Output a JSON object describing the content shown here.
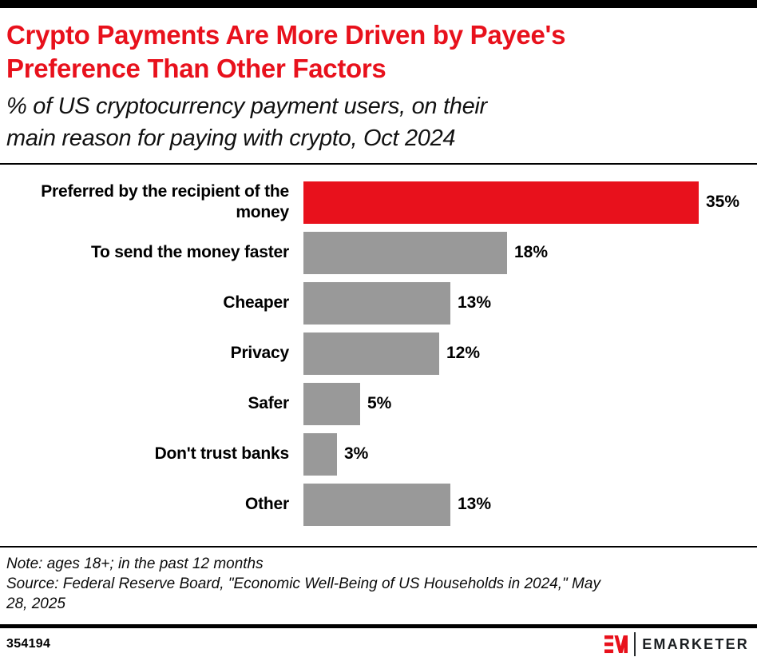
{
  "header": {
    "title": "Crypto Payments Are More Driven by Payee's Preference Than Other Factors",
    "title_lines": [
      "Crypto Payments Are More Driven by Payee's",
      "Preference Than Other Factors"
    ],
    "subtitle": "% of US cryptocurrency payment users, on their main reason for paying with crypto, Oct 2024",
    "subtitle_lines": [
      "% of US cryptocurrency payment users, on their",
      "main reason for paying with crypto, Oct 2024"
    ]
  },
  "chart_data": {
    "type": "bar",
    "orientation": "horizontal",
    "title": "Crypto Payments Are More Driven by Payee's Preference Than Other Factors",
    "subtitle": "% of US cryptocurrency payment users, on their main reason for paying with crypto, Oct 2024",
    "categories": [
      "Preferred by the recipient of the money",
      "To send the money faster",
      "Cheaper",
      "Privacy",
      "Safer",
      "Don't trust banks",
      "Other"
    ],
    "values": [
      35,
      18,
      13,
      12,
      5,
      3,
      13
    ],
    "value_labels": [
      "35%",
      "18%",
      "13%",
      "12%",
      "5%",
      "3%",
      "13%"
    ],
    "unit": "%",
    "bar_colors": [
      "#e8111c",
      "#999999",
      "#999999",
      "#999999",
      "#999999",
      "#999999",
      "#999999"
    ],
    "highlight_color": "#e8111c",
    "default_color": "#999999",
    "xlim": [
      0,
      35
    ],
    "grid": "off",
    "legend": "none",
    "value_label_position": "right-of-bar"
  },
  "notes": {
    "note": "Note: ages 18+; in the past 12 months",
    "source": "Source: Federal Reserve Board, \"Economic Well-Being of US Households in 2024,\" May 28, 2025",
    "lines": [
      "Note: ages 18+; in the past 12 months",
      "Source: Federal Reserve Board, \"Economic Well-Being of US Households in 2024,\" May",
      "28, 2025"
    ]
  },
  "footer": {
    "chart_id": "354194",
    "brand_wordmark": "EMARKETER"
  },
  "colors": {
    "accent_red": "#e8111c",
    "bar_gray": "#999999",
    "rule_black": "#000000",
    "background": "#ffffff"
  }
}
